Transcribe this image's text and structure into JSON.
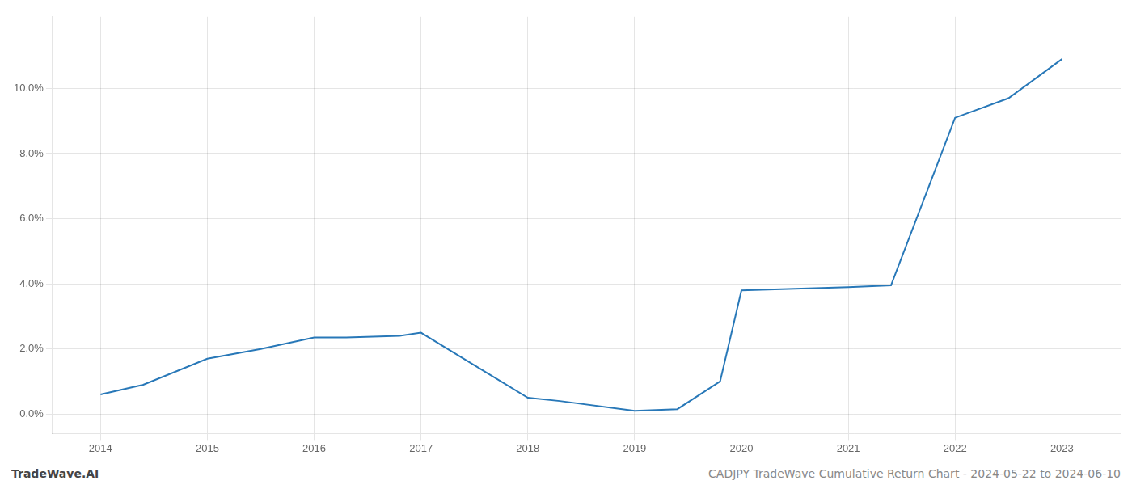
{
  "chart_data": {
    "type": "line",
    "x": [
      2014.0,
      2014.4,
      2015.0,
      2015.5,
      2016.0,
      2016.3,
      2016.8,
      2017.0,
      2017.5,
      2018.0,
      2018.3,
      2019.0,
      2019.4,
      2019.8,
      2020.0,
      2020.5,
      2021.0,
      2021.4,
      2022.0,
      2022.5,
      2023.0
    ],
    "values": [
      0.006,
      0.009,
      0.017,
      0.02,
      0.0235,
      0.0235,
      0.024,
      0.025,
      0.015,
      0.005,
      0.004,
      0.001,
      0.0015,
      0.01,
      0.038,
      0.0385,
      0.039,
      0.0395,
      0.091,
      0.097,
      0.109
    ],
    "color": "#2878b8",
    "xlim": [
      2013.55,
      2023.55
    ],
    "ylim": [
      -0.006,
      0.122
    ],
    "xticks": [
      2014,
      2015,
      2016,
      2017,
      2018,
      2019,
      2020,
      2021,
      2022,
      2023
    ],
    "yticks": [
      {
        "value": 0.0,
        "label": "0.0%"
      },
      {
        "value": 0.02,
        "label": "2.0%"
      },
      {
        "value": 0.04,
        "label": "4.0%"
      },
      {
        "value": 0.06,
        "label": "6.0%"
      },
      {
        "value": 0.08,
        "label": "8.0%"
      },
      {
        "value": 0.1,
        "label": "10.0%"
      }
    ],
    "grid": true,
    "annotations": [
      "TradeWave.AI",
      "CADJPY TradeWave Cumulative Return Chart - 2024-05-22 to 2024-06-10"
    ]
  }
}
